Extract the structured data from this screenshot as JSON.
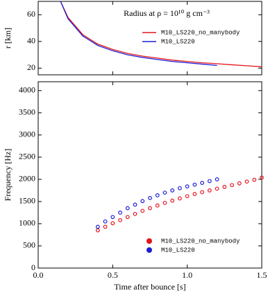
{
  "chart_data": [
    {
      "type": "line",
      "title": "Radius at ρ = 10¹⁰ g cm⁻³",
      "ylabel": "r [km]",
      "xlim": [
        0,
        1.5
      ],
      "ylim": [
        15,
        70
      ],
      "yticks": [
        20,
        40,
        60
      ],
      "legend": "upper right",
      "series": [
        {
          "name": "M10_LS220_no_manybody",
          "color": "#e3141c",
          "x": [
            0.15,
            0.2,
            0.3,
            0.4,
            0.5,
            0.6,
            0.7,
            0.8,
            0.9,
            1.0,
            1.1,
            1.2,
            1.3,
            1.4,
            1.5
          ],
          "values": [
            70,
            58,
            45,
            38,
            34,
            31,
            29,
            27.5,
            26,
            25,
            24,
            23.3,
            22.5,
            21.8,
            21
          ]
        },
        {
          "name": "M10_LS220",
          "color": "#1c1cd6",
          "x": [
            0.15,
            0.2,
            0.3,
            0.4,
            0.5,
            0.6,
            0.7,
            0.8,
            0.9,
            1.0,
            1.1,
            1.2
          ],
          "values": [
            70,
            57,
            44,
            37,
            33,
            30,
            28,
            26.5,
            25,
            24,
            23,
            22
          ]
        }
      ]
    },
    {
      "type": "scatter",
      "xlabel": "Time after bounce [s]",
      "ylabel": "Frequency [Hz]",
      "xlim": [
        0,
        1.5
      ],
      "ylim": [
        0,
        4200
      ],
      "xticks": [
        {
          "value": 0,
          "label": "0.0"
        },
        0.5,
        {
          "value": 1,
          "label": "1.0"
        },
        1.5
      ],
      "yticks": [
        0,
        500,
        1000,
        1500,
        2000,
        2500,
        3000,
        3500,
        4000
      ],
      "legend": "lower right",
      "series": [
        {
          "name": "M10_LS220_no_manybody",
          "color": "#e3141c",
          "x": [
            0.4,
            0.45,
            0.5,
            0.55,
            0.6,
            0.65,
            0.7,
            0.75,
            0.8,
            0.85,
            0.9,
            0.95,
            1.0,
            1.05,
            1.1,
            1.15,
            1.2,
            1.25,
            1.3,
            1.35,
            1.4,
            1.45,
            1.5
          ],
          "values": [
            850,
            930,
            1010,
            1080,
            1150,
            1220,
            1290,
            1350,
            1410,
            1470,
            1520,
            1570,
            1620,
            1670,
            1710,
            1750,
            1790,
            1830,
            1870,
            1910,
            1950,
            1990,
            2040
          ]
        },
        {
          "name": "M10_LS220",
          "color": "#1c1cd6",
          "x": [
            0.4,
            0.45,
            0.5,
            0.55,
            0.6,
            0.65,
            0.7,
            0.75,
            0.8,
            0.85,
            0.9,
            0.95,
            1.0,
            1.05,
            1.1,
            1.15,
            1.2
          ],
          "values": [
            930,
            1050,
            1150,
            1250,
            1350,
            1430,
            1510,
            1580,
            1640,
            1700,
            1750,
            1800,
            1840,
            1880,
            1920,
            1960,
            2000
          ]
        }
      ]
    }
  ]
}
